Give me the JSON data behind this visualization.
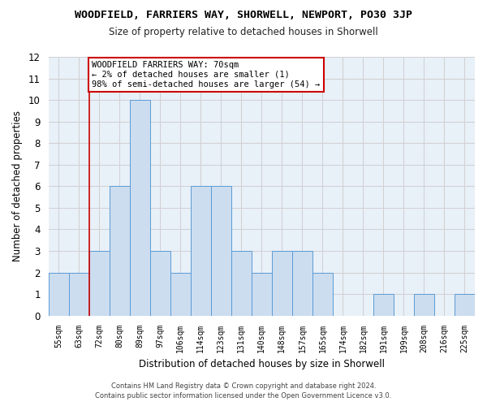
{
  "title": "WOODFIELD, FARRIERS WAY, SHORWELL, NEWPORT, PO30 3JP",
  "subtitle": "Size of property relative to detached houses in Shorwell",
  "xlabel": "Distribution of detached houses by size in Shorwell",
  "ylabel": "Number of detached properties",
  "categories": [
    "55sqm",
    "63sqm",
    "72sqm",
    "80sqm",
    "89sqm",
    "97sqm",
    "106sqm",
    "114sqm",
    "123sqm",
    "131sqm",
    "140sqm",
    "148sqm",
    "157sqm",
    "165sqm",
    "174sqm",
    "182sqm",
    "191sqm",
    "199sqm",
    "208sqm",
    "216sqm",
    "225sqm"
  ],
  "values": [
    2,
    2,
    3,
    6,
    10,
    3,
    2,
    6,
    6,
    3,
    2,
    3,
    3,
    2,
    0,
    0,
    1,
    0,
    1,
    0,
    1
  ],
  "bar_color": "#ccddf0",
  "bar_edge_color": "#5b9bd5",
  "grid_color": "#d0d0d0",
  "ax_bg_color": "#e8f0f8",
  "background_color": "#ffffff",
  "annotation_box_text": "WOODFIELD FARRIERS WAY: 70sqm\n← 2% of detached houses are smaller (1)\n98% of semi-detached houses are larger (54) →",
  "annotation_box_color": "#cc0000",
  "vline_x_index": 2,
  "ylim": [
    0,
    12
  ],
  "yticks": [
    0,
    1,
    2,
    3,
    4,
    5,
    6,
    7,
    8,
    9,
    10,
    11,
    12
  ],
  "footer_line1": "Contains HM Land Registry data © Crown copyright and database right 2024.",
  "footer_line2": "Contains public sector information licensed under the Open Government Licence v3.0."
}
